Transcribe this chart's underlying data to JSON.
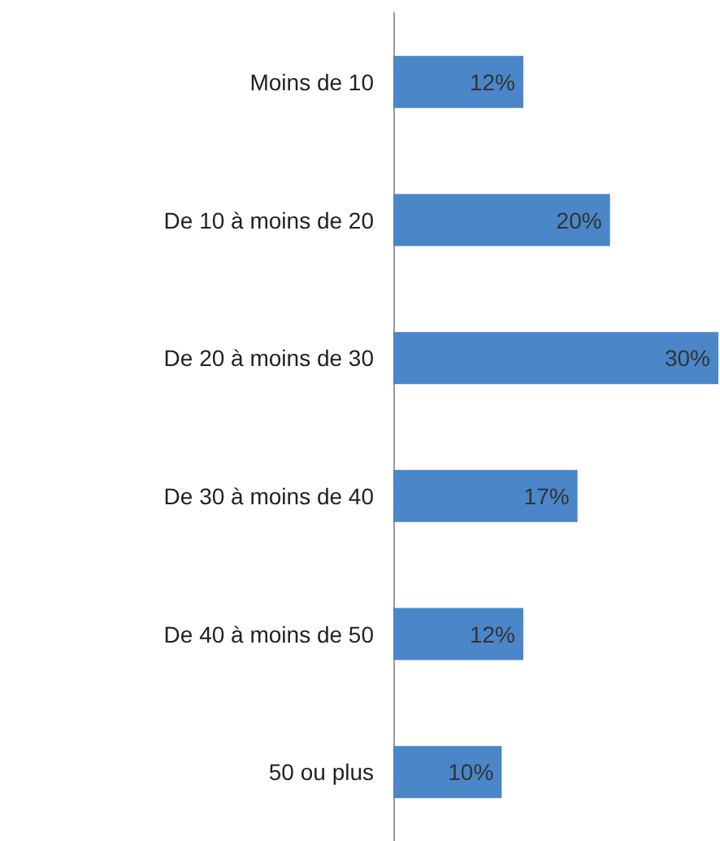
{
  "chart_data": {
    "type": "bar",
    "orientation": "horizontal",
    "categories": [
      "Moins de 10",
      "De 10 à moins de 20",
      "De 20 à moins de 30",
      "De 30 à moins de 40",
      "De 40 à moins de 50",
      "50 ou plus"
    ],
    "values": [
      12,
      20,
      30,
      17,
      12,
      10
    ],
    "value_labels": [
      "12%",
      "20%",
      "30%",
      "17%",
      "12%",
      "10%"
    ],
    "color": "#4a86c8",
    "tick_labels": "y"
  }
}
